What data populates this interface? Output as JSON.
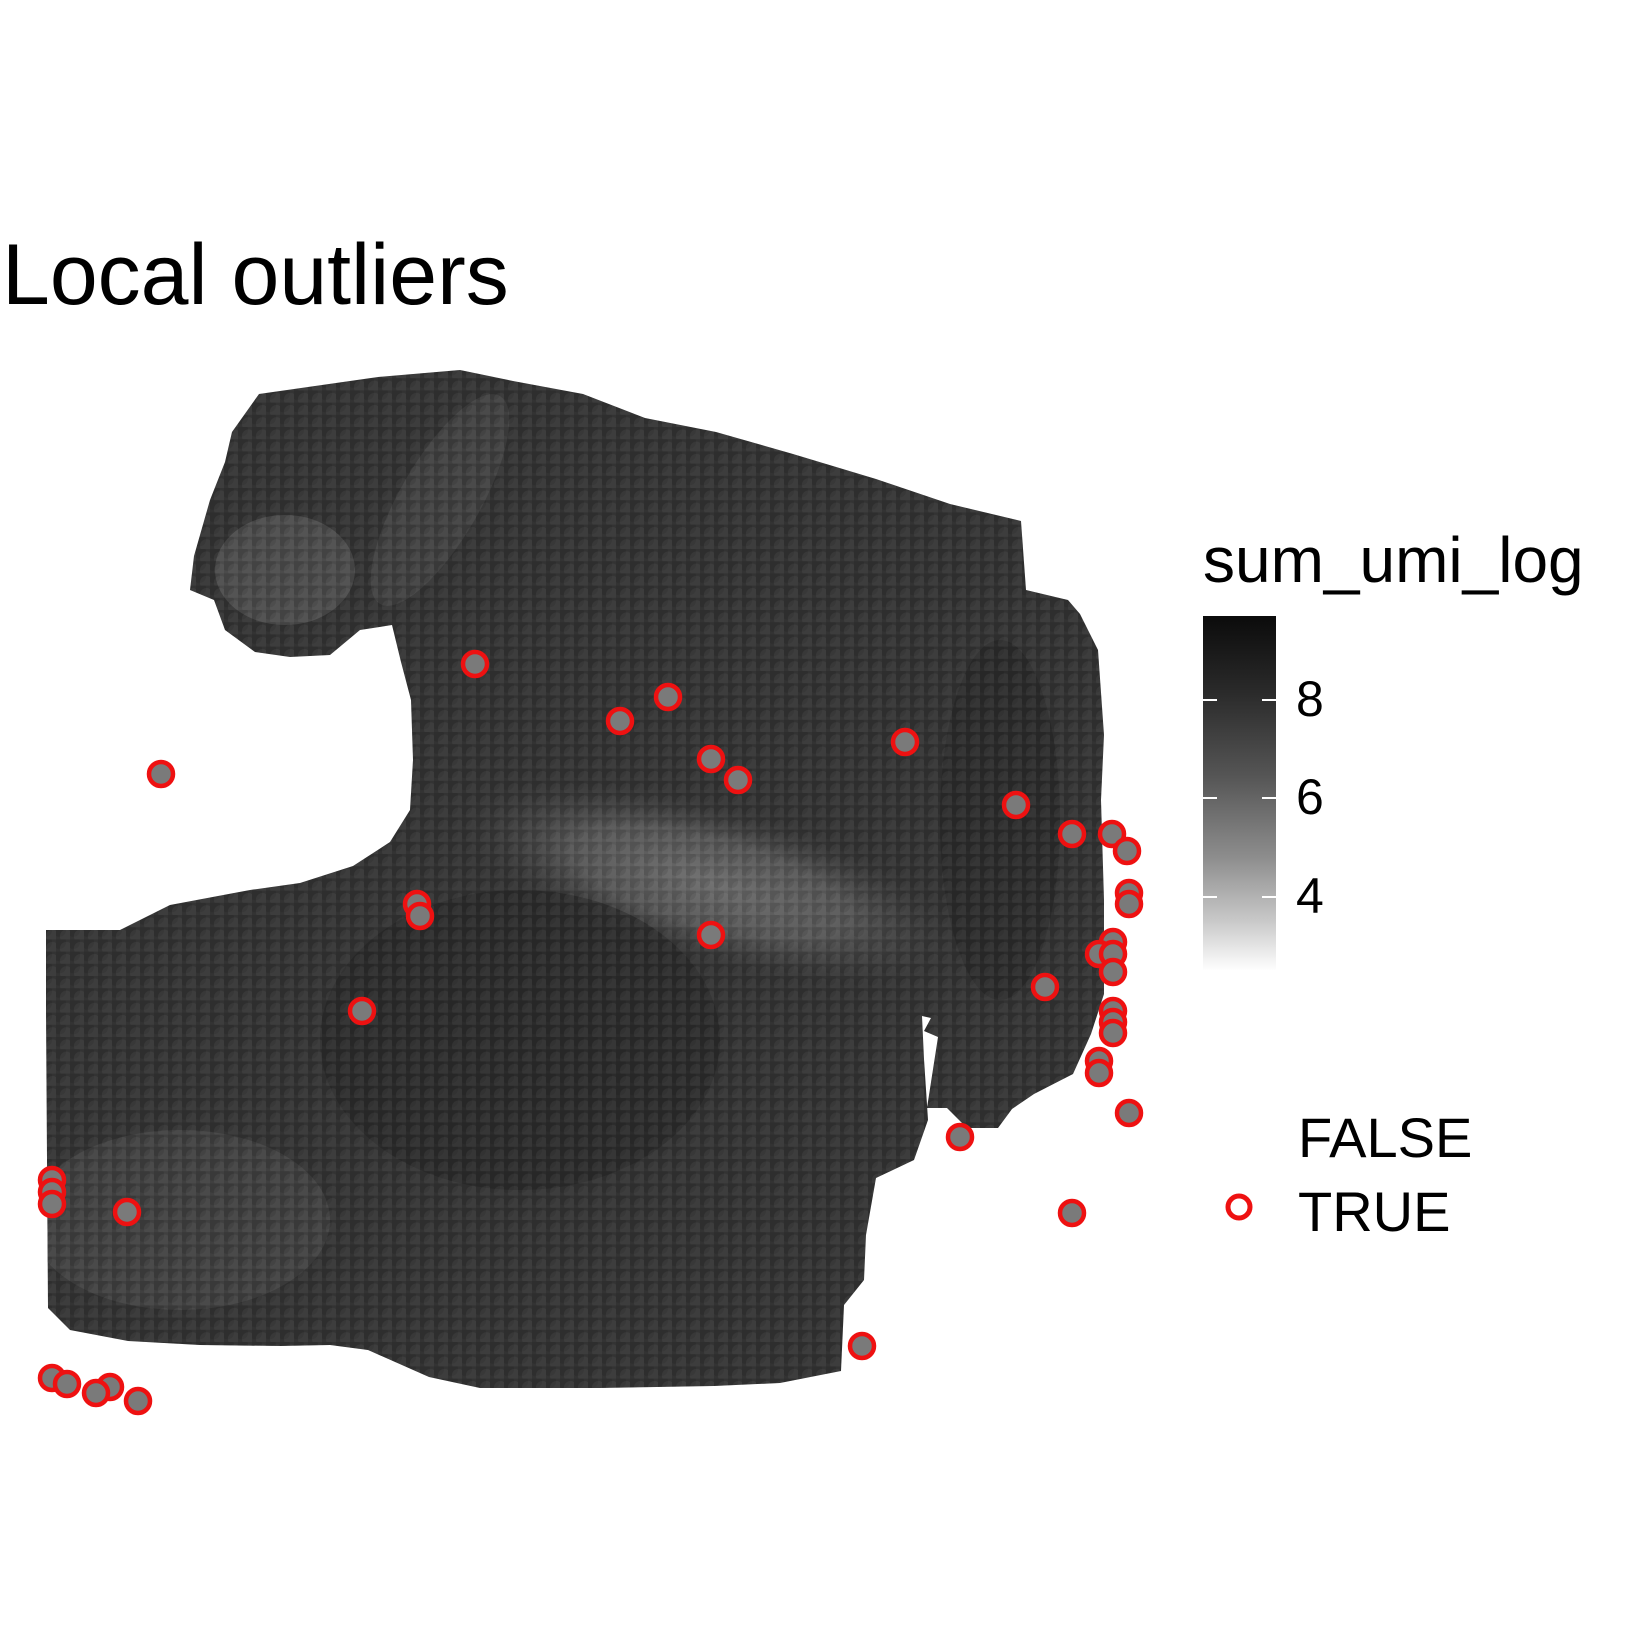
{
  "chart_data": {
    "type": "scatter",
    "title": "Local outliers",
    "xlabel": "",
    "ylabel": "",
    "grid": false,
    "color_scale": {
      "title": "sum_umi_log",
      "ticks": [
        "4",
        "6",
        "8"
      ],
      "tick_values": [
        4,
        6,
        8
      ],
      "range": [
        2.5,
        9.7
      ],
      "low_color": "#ffffff",
      "high_color": "#0b0b0b"
    },
    "series": [
      {
        "name": "FALSE",
        "description": "spot colored by sum_umi_log only",
        "outline_color": null
      },
      {
        "name": "TRUE",
        "outline_color": "#ee1111",
        "points": [
          {
            "x": 47.1,
            "y": 93.6
          },
          {
            "x": 66.4,
            "y": 90.3
          },
          {
            "x": 61.6,
            "y": 87.9
          },
          {
            "x": 90.1,
            "y": 85.8
          },
          {
            "x": 15.7,
            "y": 82.6
          },
          {
            "x": 70.7,
            "y": 84.1
          },
          {
            "x": 73.4,
            "y": 82.0
          },
          {
            "x": 101.2,
            "y": 79.5
          },
          {
            "x": 106.8,
            "y": 76.6
          },
          {
            "x": 110.8,
            "y": 76.6
          },
          {
            "x": 112.3,
            "y": 74.9
          },
          {
            "x": 41.3,
            "y": 69.6
          },
          {
            "x": 41.6,
            "y": 68.4
          },
          {
            "x": 112.5,
            "y": 70.7
          },
          {
            "x": 112.5,
            "y": 69.6
          },
          {
            "x": 70.7,
            "y": 66.5
          },
          {
            "x": 110.9,
            "y": 65.8
          },
          {
            "x": 109.5,
            "y": 64.6
          },
          {
            "x": 110.9,
            "y": 64.6
          },
          {
            "x": 110.9,
            "y": 62.8
          },
          {
            "x": 104.1,
            "y": 61.3
          },
          {
            "x": 35.8,
            "y": 58.9
          },
          {
            "x": 110.9,
            "y": 58.9
          },
          {
            "x": 110.9,
            "y": 57.8
          },
          {
            "x": 110.9,
            "y": 56.7
          },
          {
            "x": 109.5,
            "y": 53.9
          },
          {
            "x": 109.5,
            "y": 52.7
          },
          {
            "x": 112.5,
            "y": 48.7
          },
          {
            "x": 95.6,
            "y": 46.3
          },
          {
            "x": 4.8,
            "y": 42.0
          },
          {
            "x": 4.8,
            "y": 40.8
          },
          {
            "x": 4.8,
            "y": 39.6
          },
          {
            "x": 12.3,
            "y": 38.8
          },
          {
            "x": 106.8,
            "y": 38.7
          },
          {
            "x": 85.8,
            "y": 25.4
          },
          {
            "x": 4.8,
            "y": 22.2
          },
          {
            "x": 6.3,
            "y": 21.6
          },
          {
            "x": 10.6,
            "y": 21.3
          },
          {
            "x": 9.2,
            "y": 20.7
          },
          {
            "x": 13.4,
            "y": 19.9
          }
        ]
      }
    ]
  }
}
